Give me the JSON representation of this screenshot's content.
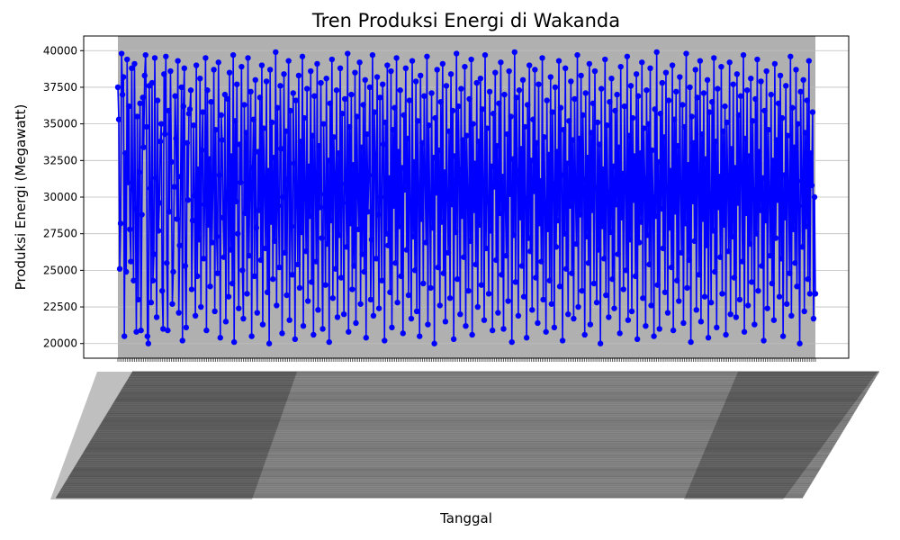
{
  "chart_data": {
    "type": "line",
    "title": "Tren Produksi Energi di Wakanda",
    "xlabel": "Tanggal",
    "ylabel": "Produksi Energi (Megawatt)",
    "ylim": [
      19000,
      41000
    ],
    "yticks": [
      20000,
      22500,
      25000,
      27500,
      30000,
      32500,
      35000,
      37500,
      40000
    ],
    "ytick_labels": [
      "20000",
      "22500",
      "25000",
      "27500",
      "30000",
      "32500",
      "35000",
      "37500",
      "40000"
    ],
    "grid": true,
    "x_tick_labels_legible": false,
    "x_start": "2023-01-01",
    "series": [
      {
        "color": "#0000ff",
        "marker": "circle",
        "values": [
          37500,
          35300,
          25100,
          28200,
          39800,
          37000,
          38200,
          20500,
          33000,
          24900,
          39400,
          31000,
          36200,
          27800,
          25600,
          38800,
          30500,
          24300,
          39100,
          29200,
          20800,
          35500,
          23000,
          31700,
          36400,
          20900,
          28800,
          36800,
          33400,
          38300,
          39700,
          34800,
          20500,
          20000,
          37600,
          30600,
          22800,
          37800,
          24300,
          26100,
          39500,
          31300,
          21800,
          36600,
          27700,
          29600,
          33800,
          35000,
          23600,
          21000,
          38400,
          34300,
          39600,
          25500,
          20900,
          35900,
          29000,
          38600,
          32400,
          22700,
          24900,
          30700,
          36900,
          34000,
          28500,
          39300,
          22100,
          26700,
          31400,
          37500,
          20200,
          36200,
          38800,
          25300,
          21100,
          33700,
          29800,
          35700,
          36000,
          37300,
          23700,
          28400,
          34900,
          30100,
          21900,
          39000,
          24600,
          31900,
          27100,
          38100,
          22500,
          33200,
          35800,
          25800,
          29500,
          39500,
          20900,
          37300,
          28100,
          32600,
          23900,
          36500,
          26900,
          30800,
          38700,
          22200,
          34600,
          27300,
          24800,
          39200,
          31500,
          20400,
          35600,
          33900,
          28600,
          25900,
          37000,
          21500,
          30300,
          36700,
          23200,
          38500,
          26400,
          32800,
          24100,
          39700,
          20100,
          35200,
          29700,
          37700,
          27500,
          22400,
          33600,
          31000,
          38900,
          25000,
          21700,
          36300,
          28900,
          34400,
          23400,
          39500,
          26000,
          30400,
          37200,
          20500,
          32000,
          35300,
          24600,
          38000,
          27900,
          22100,
          33100,
          29100,
          36800,
          25700,
          39000,
          21300,
          34700,
          30900,
          26500,
          37900,
          23500,
          31800,
          20000,
          38700,
          28300,
          35100,
          24400,
          32700,
          27000,
          39900,
          22600,
          36100,
          29400,
          25200,
          37600,
          33300,
          20700,
          30000,
          38400,
          26200,
          34500,
          23300,
          31200,
          39300,
          21600,
          35900,
          28000,
          24700,
          37100,
          32300,
          20300,
          36600,
          29900,
          25400,
          38300,
          23800,
          33800,
          27600,
          39600,
          21200,
          35400,
          30600,
          26300,
          37400,
          22900,
          32100,
          28700,
          38600,
          24200,
          34200,
          20600,
          36900,
          31100,
          25600,
          39100,
          22300,
          33500,
          29300,
          37800,
          27200,
          21000,
          35000,
          30200,
          24000,
          38100,
          26800,
          32500,
          20100,
          36400,
          28400,
          39400,
          23100,
          34100,
          31600,
          25100,
          37300,
          21800,
          33000,
          27400,
          38800,
          24500,
          35700,
          29600,
          22000,
          36700,
          30900,
          26600,
          39800,
          20800,
          34800,
          28200,
          37000,
          23700,
          32200,
          25300,
          38500,
          21400,
          35500,
          30400,
          27800,
          39200,
          22700,
          33400,
          26100,
          36300,
          24900,
          38000,
          20400,
          34300,
          29000,
          31500,
          37500,
          23000,
          27100,
          39700,
          21900,
          35800,
          32900,
          25800,
          38200,
          28800,
          22400,
          36800,
          30000,
          24300,
          37700,
          33600,
          20200,
          35100,
          27500,
          39000,
          26700,
          31300,
          23500,
          38600,
          21100,
          34600,
          29400,
          36100,
          25500,
          39500,
          22800,
          33100,
          28000,
          37300,
          24600,
          32000,
          20700,
          35600,
          30500,
          38800,
          26400,
          34000,
          23300,
          36600,
          29200,
          21700,
          39300,
          27300,
          32400,
          25000,
          37900,
          22200,
          35200,
          30800,
          20500,
          38300,
          28500,
          33700,
          24100,
          36900,
          31200,
          26900,
          39600,
          21300,
          34900,
          29800,
          23800,
          37100,
          27900,
          32700,
          20000,
          35400,
          30300,
          38700,
          25200,
          33200,
          22600,
          36500,
          28300,
          39100,
          24800,
          31700,
          21500,
          37600,
          30100,
          26200,
          34500,
          23100,
          38400,
          29500,
          35900,
          20300,
          32800,
          27600,
          39800,
          24400,
          36200,
          31900,
          22000,
          37400,
          28700,
          33900,
          25900,
          38900,
          21200,
          34200,
          30600,
          23600,
          36700,
          27000,
          39400,
          20600,
          35000,
          29100,
          32300,
          25400,
          37800,
          22500,
          33800,
          28100,
          38100,
          24000,
          36000,
          31000,
          21600,
          39700,
          26500,
          34700,
          29700,
          23400,
          37200,
          27700,
          32100,
          20900,
          35700,
          30700,
          38500,
          25700,
          33500,
          22100,
          36400,
          28900,
          39200,
          24700,
          31400,
          21000,
          37000,
          29300,
          26000,
          34300,
          22900,
          38600,
          30200,
          35500,
          20100,
          32600,
          27400,
          39900,
          24200,
          36800,
          31800,
          21900,
          37300,
          28600,
          33300,
          25300,
          38000,
          23200,
          34800,
          29900,
          20400,
          36300,
          27200,
          39000,
          26300,
          32500,
          22300,
          35300,
          30400,
          38700,
          24500,
          33700,
          21400,
          37700,
          28200,
          31100,
          25600,
          39500,
          23000,
          34100,
          29600,
          20800,
          36600,
          27800,
          32900,
          24300,
          38200,
          22700,
          35800,
          30900,
          21100,
          37500,
          26600,
          33100,
          28400,
          39300,
          23900,
          36100,
          31500,
          20200,
          34600,
          27500,
          38800,
          25100,
          32300,
          22000,
          35200,
          29400,
          37900,
          24800,
          33900,
          21700,
          36700,
          30100,
          26800,
          39700,
          22500,
          34000,
          28800,
          38300,
          23600,
          35600,
          31200,
          20600,
          37100,
          27300,
          32700,
          25500,
          39100,
          21300,
          34400,
          29100,
          36400,
          24100,
          38600,
          30600,
          22800,
          35100,
          26400,
          33600,
          20000,
          37400,
          28000,
          31900,
          25800,
          39400,
          23300,
          34900,
          30300,
          21800,
          36500,
          27600,
          38100,
          24400,
          32100,
          22400,
          35900,
          29500,
          37000,
          26100,
          33400,
          20700,
          38900,
          28600,
          31600,
          23700,
          36200,
          30800,
          25000,
          39600,
          21600,
          34200,
          27100,
          37600,
          22200,
          35400,
          29800,
          32800,
          24600,
          38400,
          20300,
          36900,
          26900,
          33000,
          28300,
          39200,
          23100,
          34700,
          31300,
          21200,
          37300,
          27400,
          35000,
          25400,
          38800,
          22600,
          33200,
          30000,
          20500,
          36000,
          28700,
          39900,
          24000,
          32400,
          21000,
          35700,
          29200,
          37800,
          26500,
          34100,
          23500,
          38500,
          30700,
          22100,
          36600,
          27900,
          31800,
          25200,
          39000,
          20900,
          35300,
          29000,
          37200,
          24300,
          33500,
          22900,
          38200,
          30400,
          26200,
          36300,
          21400,
          34800,
          28200,
          39800,
          23800,
          32200,
          25700,
          37500,
          20100,
          35500,
          29700,
          33700,
          27000,
          38700,
          22300,
          36800,
          31000,
          24700,
          39300,
          21500,
          34300,
          28500,
          37100,
          23200,
          32600,
          26700,
          38000,
          20400,
          35800,
          30200,
          22800,
          36500,
          27700,
          39500,
          24900,
          33800,
          21100,
          37400,
          29300,
          31400,
          25900,
          38900,
          23400,
          34500,
          28100,
          36200,
          20600,
          35100,
          30900,
          26300,
          39200,
          22000,
          33300,
          27300,
          37700,
          24500,
          32000,
          21800,
          38400,
          29600,
          35600,
          23000,
          36900,
          31700,
          25600,
          39700,
          20800,
          34000,
          28900,
          37300,
          22600,
          32800,
          26800,
          38100,
          24200,
          35200,
          30500,
          21300,
          36700,
          27500,
          39400,
          23600,
          33100,
          29100,
          37900,
          25300,
          31300,
          20200,
          35900,
          28400,
          38600,
          22400,
          34600,
          30100,
          26000,
          37000,
          24100,
          32500,
          21600,
          39100,
          27200,
          33900,
          29800,
          36400,
          23200,
          38300,
          25800,
          35400,
          20500,
          31500,
          28600,
          37600,
          22700,
          34200,
          30600,
          24800,
          39600,
          21900,
          36100,
          27800,
          33400,
          25500,
          38700,
          23900,
          35000,
          29400,
          20000,
          37200,
          31100,
          26600,
          38000,
          22200,
          34400,
          28000,
          36600,
          24400,
          39300,
          23400,
          33000,
          30800,
          35800,
          21700,
          30000,
          23400
        ]
      }
    ]
  }
}
